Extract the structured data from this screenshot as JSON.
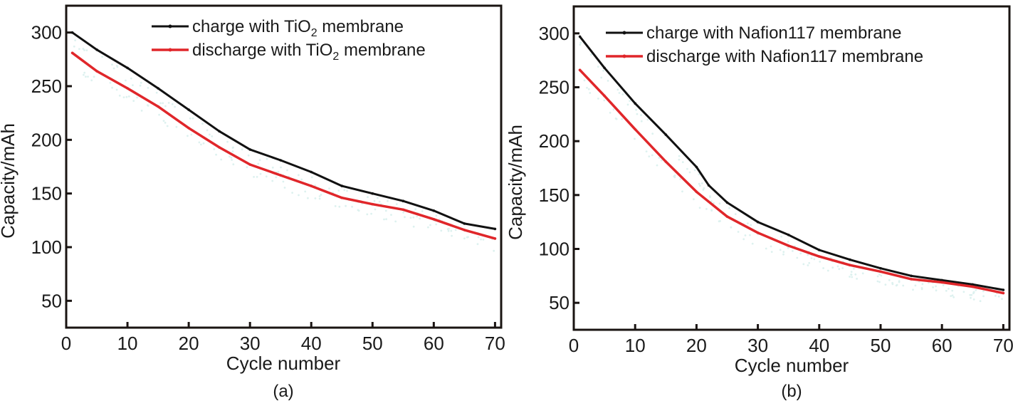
{
  "chart_data": [
    {
      "type": "line",
      "panel_label": "(a)",
      "title": "",
      "xlabel": "Cycle number",
      "ylabel": "Capacity/mAh",
      "xlim": [
        0,
        71
      ],
      "ylim": [
        25,
        325
      ],
      "xticks": [
        0,
        10,
        20,
        30,
        40,
        50,
        60,
        70
      ],
      "yticks": [
        50,
        100,
        150,
        200,
        250,
        300
      ],
      "grid": false,
      "legend_position": "top-right",
      "series": [
        {
          "name": "charge with TiO2 membrane",
          "legend_parts": [
            "charge with TiO",
            "2",
            " membrane"
          ],
          "color": "#111111",
          "x": [
            1,
            5,
            10,
            15,
            20,
            25,
            30,
            35,
            40,
            45,
            50,
            55,
            60,
            65,
            70
          ],
          "values": [
            300,
            284,
            267,
            248,
            228,
            208,
            191,
            181,
            170,
            157,
            150,
            143,
            134,
            122,
            117
          ]
        },
        {
          "name": "discharge with TiO2 membrane",
          "legend_parts": [
            "discharge with TiO",
            "2",
            " membrane"
          ],
          "color": "#e0262a",
          "x": [
            1,
            5,
            10,
            15,
            20,
            25,
            30,
            35,
            40,
            45,
            50,
            55,
            60,
            65,
            70
          ],
          "values": [
            281,
            264,
            248,
            231,
            211,
            193,
            177,
            167,
            157,
            146,
            140,
            135,
            126,
            116,
            108
          ]
        }
      ]
    },
    {
      "type": "line",
      "panel_label": "(b)",
      "title": "",
      "xlabel": "Cycle number",
      "ylabel": "Capacity/mAh",
      "xlim": [
        0,
        71
      ],
      "ylim": [
        25,
        325
      ],
      "xticks": [
        0,
        10,
        20,
        30,
        40,
        50,
        60,
        70
      ],
      "yticks": [
        50,
        100,
        150,
        200,
        250,
        300
      ],
      "grid": false,
      "legend_position": "top-right",
      "series": [
        {
          "name": "charge with Nafion117 membrane",
          "legend_parts": [
            "charge with Nafion117 membrane",
            "",
            ""
          ],
          "color": "#111111",
          "x": [
            1,
            5,
            10,
            15,
            20,
            22,
            25,
            30,
            35,
            40,
            45,
            50,
            55,
            60,
            65,
            70
          ],
          "values": [
            297,
            268,
            235,
            206,
            176,
            159,
            143,
            125,
            113,
            99,
            90,
            82,
            75,
            71,
            67,
            62
          ]
        },
        {
          "name": "discharge with Nafion117 membrane",
          "legend_parts": [
            "discharge with Nafion117 membrane",
            "",
            ""
          ],
          "color": "#e0262a",
          "x": [
            1,
            5,
            10,
            15,
            20,
            25,
            30,
            35,
            40,
            45,
            50,
            55,
            60,
            65,
            70
          ],
          "values": [
            266,
            242,
            211,
            181,
            153,
            130,
            115,
            103,
            93,
            85,
            79,
            72,
            69,
            65,
            59
          ]
        }
      ]
    }
  ]
}
